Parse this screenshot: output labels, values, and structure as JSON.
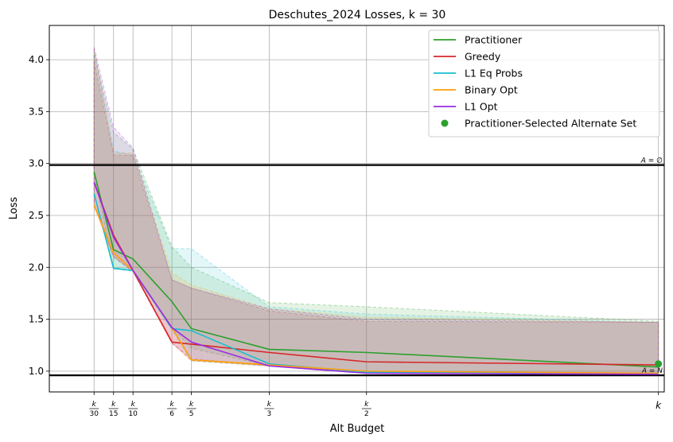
{
  "chart_data": {
    "type": "line",
    "title": "Deschutes_2024 Losses, k = 30",
    "xlabel": "Alt Budget",
    "ylabel": "Loss",
    "xlim": [
      -1.3,
      30.3
    ],
    "ylim": [
      0.8,
      4.33
    ],
    "grid": true,
    "legend_position": "top-right",
    "x_ticks": [
      {
        "x": 1,
        "num": "k",
        "den": "30"
      },
      {
        "x": 2,
        "num": "k",
        "den": "15"
      },
      {
        "x": 3,
        "num": "k",
        "den": "10"
      },
      {
        "x": 5,
        "num": "k",
        "den": "6"
      },
      {
        "x": 6,
        "num": "k",
        "den": "5"
      },
      {
        "x": 10,
        "num": "k",
        "den": "3"
      },
      {
        "x": 15,
        "num": "k",
        "den": "2"
      },
      {
        "x": 30,
        "num": "k",
        "den": ""
      }
    ],
    "y_ticks": [
      1.0,
      1.5,
      2.0,
      2.5,
      3.0,
      3.5,
      4.0
    ],
    "y_tick_labels": [
      "1.0",
      "1.5",
      "2.0",
      "2.5",
      "3.0",
      "3.5",
      "4.0"
    ],
    "x": [
      1,
      2,
      3,
      5,
      6,
      10,
      15,
      30
    ],
    "series": [
      {
        "name": "Practitioner",
        "color": "#2ca02c",
        "values": [
          2.92,
          2.17,
          2.08,
          1.67,
          1.41,
          1.21,
          1.18,
          1.04
        ],
        "band_upper": [
          4.05,
          3.3,
          3.14,
          2.2,
          2.0,
          1.66,
          1.62,
          1.48
        ],
        "band_lower": [
          2.9,
          2.0,
          1.97,
          1.42,
          1.22,
          1.05,
          0.99,
          0.97
        ]
      },
      {
        "name": "Greedy",
        "color": "#d62728",
        "values": [
          2.82,
          2.31,
          1.97,
          1.28,
          1.26,
          1.18,
          1.09,
          1.06
        ],
        "band_upper": [
          3.98,
          3.08,
          3.08,
          1.88,
          1.8,
          1.58,
          1.48,
          1.47
        ],
        "band_lower": [
          2.62,
          2.1,
          1.96,
          1.27,
          1.1,
          1.05,
          0.99,
          0.97
        ]
      },
      {
        "name": "L1 Eq Probs",
        "color": "#17becf",
        "values": [
          2.71,
          1.99,
          1.97,
          1.41,
          1.39,
          1.07,
          0.99,
          0.98
        ],
        "band_upper": [
          4.1,
          3.12,
          3.08,
          2.18,
          2.18,
          1.62,
          1.55,
          1.47
        ],
        "band_lower": [
          2.7,
          1.99,
          1.96,
          1.4,
          1.1,
          1.05,
          0.98,
          0.97
        ]
      },
      {
        "name": "Binary Opt",
        "color": "#ff9f0a",
        "values": [
          2.6,
          2.14,
          1.97,
          1.42,
          1.11,
          1.06,
          1.0,
          0.98
        ],
        "band_upper": [
          4.12,
          3.1,
          3.1,
          1.95,
          1.83,
          1.6,
          1.52,
          1.47
        ],
        "band_lower": [
          2.58,
          2.1,
          1.96,
          1.27,
          1.1,
          1.05,
          0.98,
          0.97
        ]
      },
      {
        "name": "L1 Opt",
        "color": "#9a2be2",
        "values": [
          2.82,
          2.29,
          1.97,
          1.42,
          1.28,
          1.05,
          0.98,
          0.97
        ],
        "band_upper": [
          4.12,
          3.35,
          3.15,
          1.88,
          1.8,
          1.6,
          1.5,
          1.47
        ],
        "band_lower": [
          2.6,
          2.1,
          1.96,
          1.27,
          1.12,
          1.05,
          0.98,
          0.97
        ]
      }
    ],
    "highlight_point": {
      "name": "Practitioner-Selected Alternate Set",
      "x": 30,
      "y": 1.07,
      "color": "#2ca02c"
    },
    "reference_lines": [
      {
        "y": 2.985,
        "label": "A = ∅"
      },
      {
        "y": 0.96,
        "label": "A = N"
      }
    ]
  }
}
